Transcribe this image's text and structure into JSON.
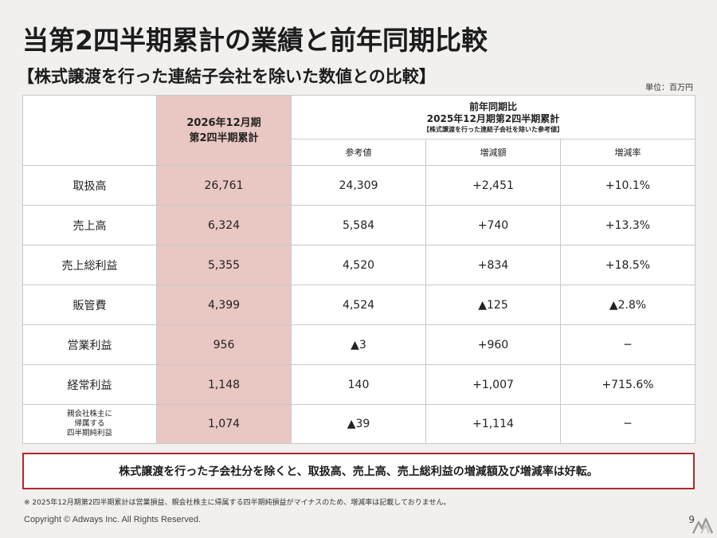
{
  "title": "当第2四半期累計の業績と前年同期比較",
  "subtitle": "【株式譲渡を行った連結子会社を除いた数値との比較】",
  "unit": "単位：百万円",
  "table": {
    "header_current_line1": "2026年12月期",
    "header_current_line2": "第2四半期累計",
    "header_prev_line1": "前年同期比",
    "header_prev_line2": "2025年12月期第2四半期累計",
    "header_prev_note": "【株式譲渡を行った連結子会社を除いた参考値】",
    "sub_headers": [
      "参考値",
      "増減額",
      "増減率"
    ],
    "rows": [
      {
        "label": "取扱高",
        "current": "26,761",
        "reference": "24,309",
        "change": "+2,451",
        "rate": "+10.1%"
      },
      {
        "label": "売上高",
        "current": "6,324",
        "reference": "5,584",
        "change": "+740",
        "rate": "+13.3%"
      },
      {
        "label": "売上総利益",
        "current": "5,355",
        "reference": "4,520",
        "change": "+834",
        "rate": "+18.5%"
      },
      {
        "label": "販管費",
        "current": "4,399",
        "reference": "4,524",
        "change": "▲125",
        "rate": "▲2.8%"
      },
      {
        "label": "営業利益",
        "current": "956",
        "reference": "▲3",
        "change": "+960",
        "rate": "─"
      },
      {
        "label": "経常利益",
        "current": "1,148",
        "reference": "140",
        "change": "+1,007",
        "rate": "+715.6%"
      }
    ],
    "last_row": {
      "label_line1": "親会社株主に",
      "label_line2": "帰属する",
      "label_line3": "四半期純利益",
      "current": "1,074",
      "reference": "▲39",
      "change": "+1,114",
      "rate": "─"
    }
  },
  "summary": "株式譲渡を行った子会社分を除くと、取扱高、売上高、売上総利益の増減額及び増減率は好転。",
  "footnote": "※ 2025年12月期第2四半期累計は営業損益、親会社株主に帰属する四半期純損益がマイナスのため、増減率は記載しておりません。",
  "copyright": "Copyright © Adways Inc. All Rights Reserved.",
  "page_number": "9",
  "colors": {
    "highlight": "#e9c7c2",
    "summary_border": "#b3282d",
    "background": "#f1f0ee"
  },
  "logo_icon": "watermark-logo-icon"
}
